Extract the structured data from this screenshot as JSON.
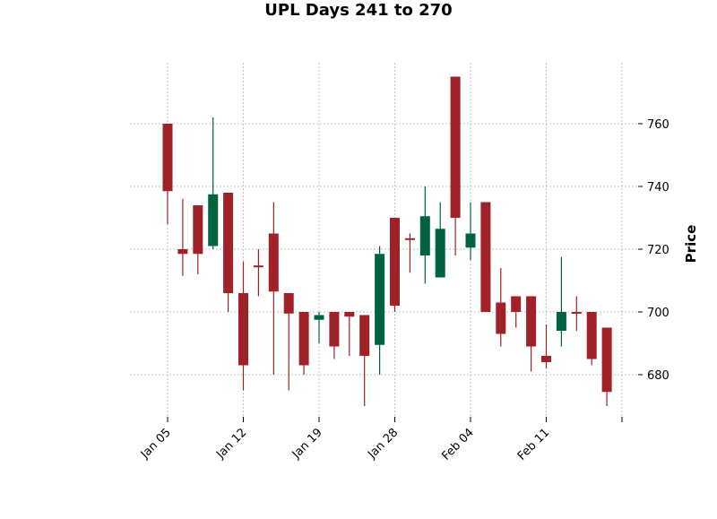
{
  "chart_data": {
    "type": "candlestick",
    "title": "UPL Days 241 to 270",
    "ylabel": "Price",
    "xlabel": "",
    "ylim": [
      665,
      780
    ],
    "y_axis_side": "right",
    "yticks": [
      680,
      700,
      720,
      740,
      760
    ],
    "grid": true,
    "xtick_labels": [
      {
        "index": 0,
        "label": "Jan 05"
      },
      {
        "index": 5,
        "label": "Jan 12"
      },
      {
        "index": 10,
        "label": "Jan 19"
      },
      {
        "index": 15,
        "label": "Jan 28"
      },
      {
        "index": 20,
        "label": "Feb 04"
      },
      {
        "index": 25,
        "label": "Feb 11"
      },
      {
        "index": 30,
        "label": ""
      }
    ],
    "colors": {
      "up": "#006340",
      "down": "#a02128",
      "grid": "#b0b0b0"
    },
    "candles": [
      {
        "open": 760,
        "high": 760,
        "low": 728,
        "close": 738.5
      },
      {
        "open": 720,
        "high": 736,
        "low": 711.5,
        "close": 718.5
      },
      {
        "open": 734,
        "high": 734,
        "low": 712,
        "close": 718.5
      },
      {
        "open": 721,
        "high": 762,
        "low": 720,
        "close": 737.5
      },
      {
        "open": 738,
        "high": 738,
        "low": 700,
        "close": 706
      },
      {
        "open": 706,
        "high": 716,
        "low": 675,
        "close": 683
      },
      {
        "open": 714.8,
        "high": 720,
        "low": 705,
        "close": 714.5
      },
      {
        "open": 725,
        "high": 735,
        "low": 680,
        "close": 706.5
      },
      {
        "open": 706,
        "high": 706,
        "low": 675,
        "close": 699.5
      },
      {
        "open": 700,
        "high": 700,
        "low": 680,
        "close": 683
      },
      {
        "open": 697.5,
        "high": 700,
        "low": 690,
        "close": 699
      },
      {
        "open": 700,
        "high": 700,
        "low": 685,
        "close": 689
      },
      {
        "open": 700,
        "high": 700,
        "low": 686,
        "close": 698.5
      },
      {
        "open": 699,
        "high": 699,
        "low": 670,
        "close": 686
      },
      {
        "open": 689.5,
        "high": 721,
        "low": 680,
        "close": 718.5
      },
      {
        "open": 730,
        "high": 730,
        "low": 700,
        "close": 702
      },
      {
        "open": 723.5,
        "high": 725,
        "low": 712.5,
        "close": 723
      },
      {
        "open": 718,
        "high": 740,
        "low": 709,
        "close": 730.5
      },
      {
        "open": 711,
        "high": 735,
        "low": 711,
        "close": 726.5
      },
      {
        "open": 775,
        "high": 775,
        "low": 718,
        "close": 730
      },
      {
        "open": 720.5,
        "high": 735,
        "low": 716.5,
        "close": 725
      },
      {
        "open": 735,
        "high": 735,
        "low": 700,
        "close": 700
      },
      {
        "open": 703,
        "high": 714,
        "low": 689,
        "close": 693
      },
      {
        "open": 705,
        "high": 705,
        "low": 695,
        "close": 700
      },
      {
        "open": 705,
        "high": 705,
        "low": 681,
        "close": 689
      },
      {
        "open": 686,
        "high": 696,
        "low": 682,
        "close": 684
      },
      {
        "open": 694,
        "high": 717.5,
        "low": 689,
        "close": 700
      },
      {
        "open": 700,
        "high": 705,
        "low": 694,
        "close": 699.5
      },
      {
        "open": 700,
        "high": 700,
        "low": 683,
        "close": 685
      },
      {
        "open": 695,
        "high": 695,
        "low": 670,
        "close": 674.5
      }
    ]
  }
}
